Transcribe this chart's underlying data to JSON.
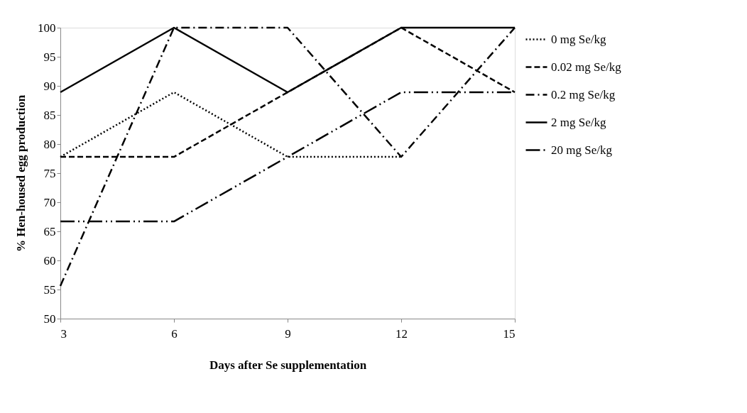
{
  "chart_data": {
    "type": "line",
    "xlabel": "Days after Se supplementation",
    "ylabel": "% Hen-housed egg production",
    "x": [
      3,
      6,
      9,
      12,
      15
    ],
    "xlim": [
      3,
      15
    ],
    "xticks": [
      3,
      6,
      9,
      12,
      15
    ],
    "ylim": [
      50,
      100
    ],
    "yticks": [
      50,
      55,
      60,
      65,
      70,
      75,
      80,
      85,
      90,
      95,
      100
    ],
    "grid": false,
    "legend": "right",
    "marker": "none",
    "series": [
      {
        "name": "0 mg Se/kg",
        "color": "#000000",
        "line_style": "dotted",
        "values": [
          77.8,
          88.9,
          77.8,
          77.8,
          null
        ]
      },
      {
        "name": "0.02 mg Se/kg",
        "color": "#000000",
        "line_style": "dashed",
        "values": [
          77.8,
          77.8,
          88.9,
          100,
          88.9
        ]
      },
      {
        "name": "0.2 mg Se/kg",
        "color": "#000000",
        "line_style": "dashdot",
        "values": [
          55.6,
          100,
          100,
          77.8,
          100
        ]
      },
      {
        "name": "2 mg Se/kg",
        "color": "#000000",
        "line_style": "solid",
        "values": [
          88.9,
          100,
          88.9,
          100,
          100
        ]
      },
      {
        "name": "20 mg Se/kg",
        "color": "#000000",
        "line_style": "longdashdotdot",
        "values": [
          66.7,
          66.7,
          77.8,
          88.9,
          88.9
        ]
      }
    ]
  }
}
